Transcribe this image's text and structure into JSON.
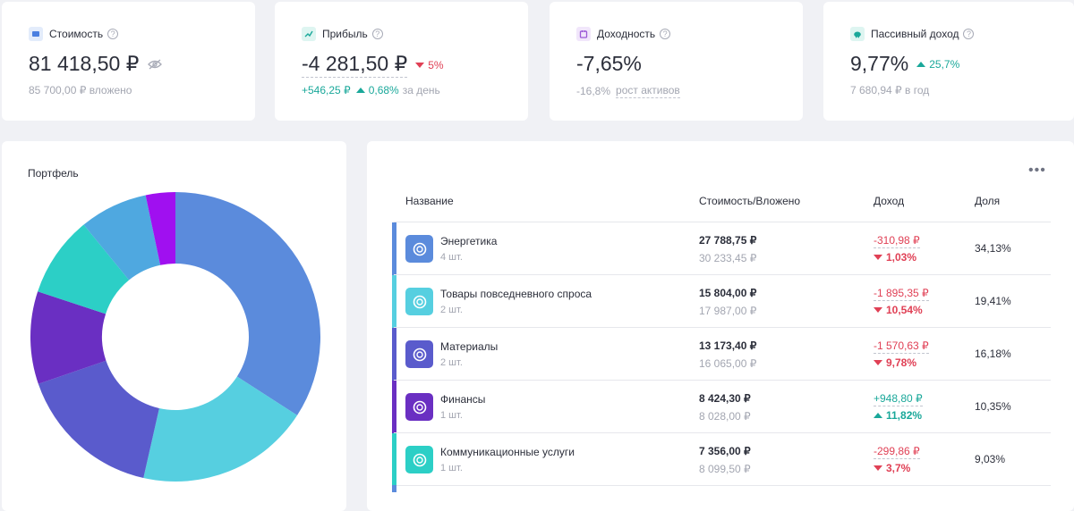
{
  "stats": [
    {
      "title": "Стоимость",
      "icon": "wallet-icon",
      "icon_bg": "#e3ecfb",
      "icon_color": "#4b7fe0",
      "value": "81 418,50 ₽",
      "sub": "85 700,00 ₽ вложено"
    },
    {
      "title": "Прибыль",
      "icon": "chart-icon",
      "icon_bg": "#def5f1",
      "icon_color": "#1aa89a",
      "value": "-4 281,50 ₽",
      "change": "5%",
      "sub_value": "+546,25 ₽",
      "sub_change": "0,68%",
      "sub_suffix": "за день"
    },
    {
      "title": "Доходность",
      "icon": "calendar-icon",
      "icon_bg": "#f1e6fb",
      "icon_color": "#9b59d6",
      "value": "-7,65%",
      "sub_value": "-16,8%",
      "sub_suffix": "рост активов"
    },
    {
      "title": "Пассивный доход",
      "icon": "piggy-bank-icon",
      "icon_bg": "#def5f1",
      "icon_color": "#1aa89a",
      "value": "9,77%",
      "change": "25,7%",
      "sub": "7 680,94 ₽ в год"
    }
  ],
  "portfolio": {
    "title": "Портфель"
  },
  "table": {
    "columns": {
      "name": "Название",
      "value": "Стоимость/Вложено",
      "income": "Доход",
      "share": "Доля"
    },
    "rows": [
      {
        "name": "Энергетика",
        "qty": "4 шт.",
        "value": "27 788,75 ₽",
        "invested": "30 233,45 ₽",
        "income": "-310,98 ₽",
        "income_pct": "1,03%",
        "trend": "down",
        "share": "34,13%",
        "color": "#5b8bdc"
      },
      {
        "name": "Товары повседневного спроса",
        "qty": "2 шт.",
        "value": "15 804,00 ₽",
        "invested": "17 987,00 ₽",
        "income": "-1 895,35 ₽",
        "income_pct": "10,54%",
        "trend": "down",
        "share": "19,41%",
        "color": "#56cfe0"
      },
      {
        "name": "Материалы",
        "qty": "2 шт.",
        "value": "13 173,40 ₽",
        "invested": "16 065,00 ₽",
        "income": "-1 570,63 ₽",
        "income_pct": "9,78%",
        "trend": "down",
        "share": "16,18%",
        "color": "#5a5bcc"
      },
      {
        "name": "Финансы",
        "qty": "1 шт.",
        "value": "8 424,30 ₽",
        "invested": "8 028,00 ₽",
        "income": "+948,80 ₽",
        "income_pct": "11,82%",
        "trend": "up",
        "share": "10,35%",
        "color": "#6a2fc2"
      },
      {
        "name": "Коммуникационные услуги",
        "qty": "1 шт.",
        "value": "7 356,00 ₽",
        "invested": "8 099,50 ₽",
        "income": "-299,86 ₽",
        "income_pct": "3,7%",
        "trend": "down",
        "share": "9,03%",
        "color": "#2ccfc6"
      }
    ]
  },
  "chart_data": {
    "type": "pie",
    "donut": true,
    "slices": [
      {
        "value": 34.13,
        "color": "#5b8bdc"
      },
      {
        "value": 19.41,
        "color": "#56cfe0"
      },
      {
        "value": 16.18,
        "color": "#5a5bcc"
      },
      {
        "value": 10.35,
        "color": "#6a2fc2"
      },
      {
        "value": 9.03,
        "color": "#2ccfc6"
      },
      {
        "value": 7.6,
        "color": "#4fa8e0"
      },
      {
        "value": 3.3,
        "color": "#a010f0"
      }
    ]
  }
}
